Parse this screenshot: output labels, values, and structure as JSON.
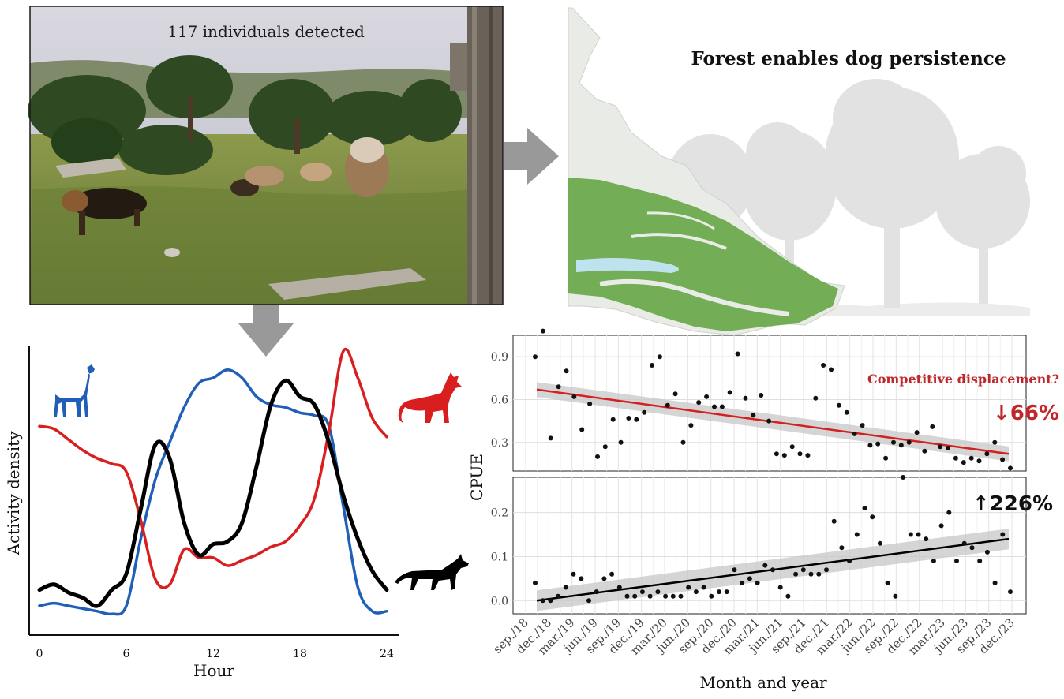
{
  "photo": {
    "caption": "117 individuals detected"
  },
  "map": {
    "title": "Forest enables dog persistence"
  },
  "colors": {
    "guanaco": "#1f5fb8",
    "fox": "#d81e1e",
    "dog": "#000000",
    "forest": "#5ea23b",
    "water": "#bfe3ee",
    "land": "#e9ece6",
    "tree": "#dcdcdc",
    "arrow": "#999999",
    "trend_fox": "#d32020",
    "trend_dog": "#000000",
    "band": "#c7c7c7"
  },
  "icons": [
    "guanaco-icon",
    "fox-icon",
    "dog-icon"
  ],
  "chart_data": [
    {
      "type": "line",
      "ylabel": "Activity density",
      "xlabel": "Hour",
      "xlim": [
        0,
        24
      ],
      "ylim": [
        0,
        1
      ],
      "xticks": [
        "0",
        "6",
        "12",
        "18",
        "24"
      ],
      "x": [
        0,
        1,
        2,
        3,
        4,
        5,
        6,
        7,
        8,
        9,
        10,
        11,
        12,
        13,
        14,
        15,
        16,
        17,
        18,
        19,
        20,
        21,
        22,
        23,
        24
      ],
      "series": [
        {
          "key": "guanaco",
          "values": [
            0.05,
            0.06,
            0.05,
            0.04,
            0.03,
            0.02,
            0.05,
            0.3,
            0.52,
            0.66,
            0.79,
            0.88,
            0.9,
            0.93,
            0.9,
            0.83,
            0.8,
            0.79,
            0.77,
            0.76,
            0.72,
            0.42,
            0.12,
            0.03,
            0.03
          ]
        },
        {
          "key": "fox",
          "values": [
            0.72,
            0.71,
            0.67,
            0.63,
            0.6,
            0.58,
            0.55,
            0.37,
            0.15,
            0.13,
            0.26,
            0.23,
            0.23,
            0.2,
            0.22,
            0.24,
            0.27,
            0.29,
            0.35,
            0.45,
            0.7,
            1.0,
            0.9,
            0.75,
            0.68
          ]
        },
        {
          "key": "dog",
          "values": [
            0.11,
            0.13,
            0.1,
            0.08,
            0.05,
            0.11,
            0.17,
            0.41,
            0.65,
            0.6,
            0.36,
            0.24,
            0.28,
            0.29,
            0.36,
            0.57,
            0.8,
            0.89,
            0.83,
            0.8,
            0.66,
            0.46,
            0.3,
            0.18,
            0.11
          ]
        }
      ]
    },
    {
      "type": "scatter",
      "ylabel": "CPUE",
      "xlabel": "Month and year",
      "x": [
        "sep./18",
        "dec./18",
        "mar./19",
        "jun./19",
        "sep./19",
        "dec./19",
        "mar./20",
        "jun./20",
        "sep./20",
        "dec./20",
        "mar./21",
        "jun./21",
        "sep./21",
        "dec./21",
        "mar./22",
        "jun./22",
        "sep./22",
        "dec./22",
        "mar./23",
        "jun./23",
        "sep./23",
        "dec./23"
      ],
      "panels": [
        {
          "key": "fox",
          "ylim": [
            0.1,
            1.05
          ],
          "yticks": [
            "0.3",
            "0.6",
            "0.9"
          ],
          "annotation": "Competitive displacement?",
          "change": "↓66%",
          "trend": [
            0.67,
            0.22
          ],
          "band": 0.04,
          "points": [
            0.9,
            1.08,
            0.33,
            0.69,
            0.8,
            0.62,
            0.39,
            0.57,
            0.2,
            0.27,
            0.46,
            0.3,
            0.47,
            0.46,
            0.51,
            0.84,
            0.9,
            0.56,
            0.64,
            0.3,
            0.42,
            0.58,
            0.62,
            0.55,
            0.55,
            0.65,
            0.92,
            0.61,
            0.49,
            0.63,
            0.45,
            0.22,
            0.21,
            0.27,
            0.22,
            0.21,
            0.61,
            0.84,
            0.81,
            0.56,
            0.51,
            0.36,
            0.42,
            0.28,
            0.29,
            0.19,
            0.3,
            0.28,
            0.3,
            0.37,
            0.24,
            0.41,
            0.27,
            0.26,
            0.19,
            0.16,
            0.19,
            0.17,
            0.22,
            0.3,
            0.18,
            0.12
          ]
        },
        {
          "key": "dog",
          "ylim": [
            -0.03,
            0.28
          ],
          "yticks": [
            "0.0",
            "0.1",
            "0.2"
          ],
          "change": "↑226%",
          "trend": [
            0.0,
            0.14
          ],
          "band": 0.018,
          "points": [
            0.04,
            0.0,
            0.0,
            0.01,
            0.03,
            0.06,
            0.05,
            0.0,
            0.02,
            0.05,
            0.06,
            0.03,
            0.01,
            0.01,
            0.02,
            0.01,
            0.02,
            0.01,
            0.01,
            0.01,
            0.03,
            0.02,
            0.03,
            0.01,
            0.02,
            0.02,
            0.07,
            0.04,
            0.05,
            0.04,
            0.08,
            0.07,
            0.03,
            0.01,
            0.06,
            0.07,
            0.06,
            0.06,
            0.07,
            0.18,
            0.12,
            0.09,
            0.15,
            0.21,
            0.19,
            0.13,
            0.04,
            0.01,
            0.28,
            0.15,
            0.15,
            0.14,
            0.09,
            0.17,
            0.2,
            0.09,
            0.13,
            0.12,
            0.09,
            0.11,
            0.04,
            0.15,
            0.02
          ]
        }
      ]
    }
  ]
}
